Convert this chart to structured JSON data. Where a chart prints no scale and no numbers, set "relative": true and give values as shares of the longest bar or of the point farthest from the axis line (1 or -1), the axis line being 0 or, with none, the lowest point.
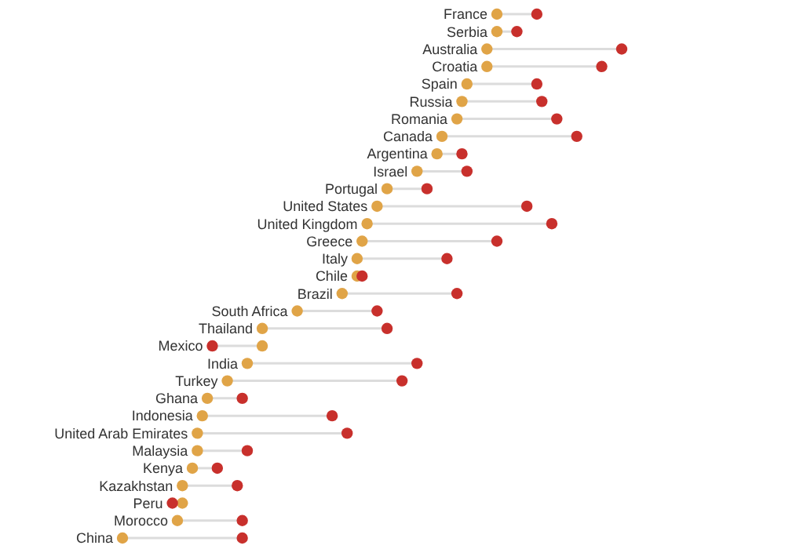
{
  "chart_data": {
    "type": "scatter",
    "relative": true,
    "marker": "circle",
    "orientation": "horizontal",
    "categories": [
      "France",
      "Serbia",
      "Australia",
      "Croatia",
      "Spain",
      "Russia",
      "Romania",
      "Canada",
      "Argentina",
      "Israel",
      "Portugal",
      "United States",
      "United Kingdom",
      "Greece",
      "Italy",
      "Chile",
      "Brazil",
      "South Africa",
      "Thailand",
      "Mexico",
      "India",
      "Turkey",
      "Ghana",
      "Indonesia",
      "United Arab Emirates",
      "Malaysia",
      "Kenya",
      "Kazakhstan",
      "Peru",
      "Morocco",
      "China"
    ],
    "series": [
      {
        "color": "#e0a447",
        "values": [
          0.75,
          0.75,
          0.73,
          0.73,
          0.69,
          0.68,
          0.67,
          0.64,
          0.63,
          0.59,
          0.53,
          0.51,
          0.49,
          0.48,
          0.47,
          0.47,
          0.44,
          0.35,
          0.28,
          0.28,
          0.25,
          0.21,
          0.17,
          0.16,
          0.15,
          0.15,
          0.14,
          0.12,
          0.12,
          0.11,
          0
        ]
      },
      {
        "color": "#c8302c",
        "values": [
          0.83,
          0.79,
          1,
          0.96,
          0.83,
          0.84,
          0.87,
          0.91,
          0.68,
          0.69,
          0.61,
          0.81,
          0.86,
          0.75,
          0.65,
          0.48,
          0.67,
          0.51,
          0.53,
          0.18,
          0.59,
          0.56,
          0.24,
          0.42,
          0.45,
          0.25,
          0.19,
          0.23,
          0.1,
          0.24,
          0.24
        ]
      }
    ]
  }
}
